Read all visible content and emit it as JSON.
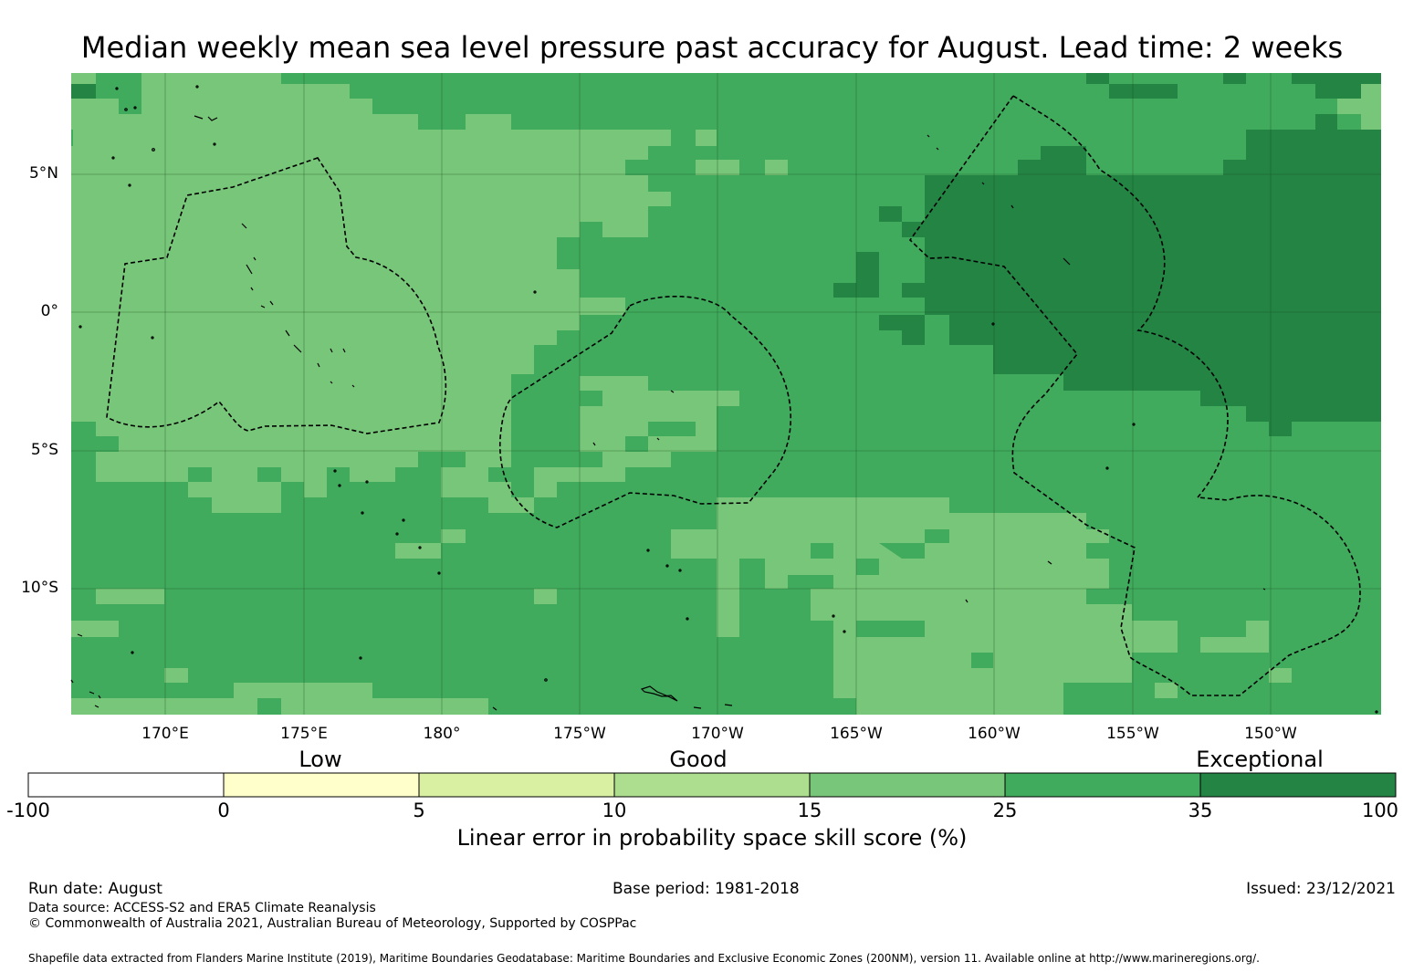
{
  "title": "Median weekly mean sea level pressure past accuracy for August. Lead time: 2 weeks",
  "map": {
    "lon_ticks": [
      "170°E",
      "175°E",
      "180°",
      "175°W",
      "170°W",
      "165°W",
      "160°W",
      "155°W",
      "150°W"
    ],
    "lat_ticks": [
      "5°N",
      "0°",
      "5°S",
      "10°S"
    ],
    "colors": {
      "band_15_25": "#78c679",
      "band_25_35": "#41ab5d",
      "band_35_100": "#238443",
      "boundary": "#000000"
    }
  },
  "colorbar": {
    "categories": [
      "Low",
      "Good",
      "Exceptional"
    ],
    "ticks": [
      "-100",
      "0",
      "5",
      "10",
      "15",
      "25",
      "35",
      "100"
    ],
    "colors": [
      "#ffffff",
      "#ffffcc",
      "#d9f0a3",
      "#addd8e",
      "#78c679",
      "#41ab5d",
      "#238443"
    ],
    "label": "Linear error in probability space skill score (%)"
  },
  "footer": {
    "run_date": "Run date: August",
    "base_period": "Base period: 1981-2018",
    "issued": "Issued: 23/12/2021",
    "data_source": "Data source: ACCESS-S2 and ERA5 Climate Reanalysis",
    "copyright": "© Commonwealth of Australia 2021, Australian Bureau of Meteorology, Supported by COSPPac",
    "shapefile": "Shapefile data extracted from Flanders Marine Institute (2019), Maritime Boundaries Geodatabase: Maritime Boundaries and Exclusive Economic Zones (200NM), version 11. Available online at http://www.marineregions.org/."
  }
}
